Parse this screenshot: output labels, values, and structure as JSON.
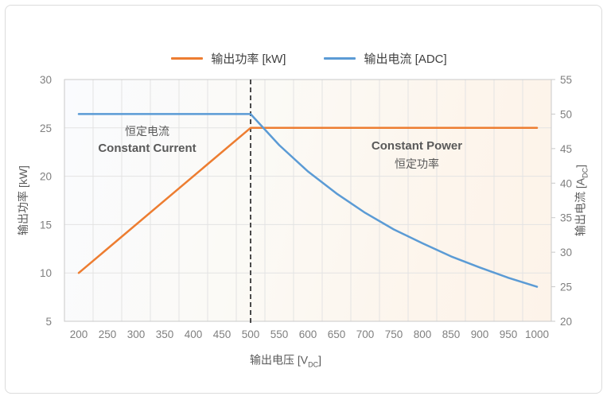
{
  "legend": {
    "items": [
      {
        "label": "输出功率 [kW]",
        "color": "#ED7D31"
      },
      {
        "label": "输出电流 [ADC]",
        "color": "#5B9BD5"
      }
    ]
  },
  "axes": {
    "left_label": "输出功率 [kW]",
    "right_label_prefix": "输出电流 [A",
    "right_label_sub": "DC",
    "right_label_suffix": "]",
    "x_label_prefix": "输出电压 [V",
    "x_label_sub": "DC",
    "x_label_suffix": "]"
  },
  "chart_data": {
    "type": "line",
    "title": "",
    "xlabel": "输出电压 [VDC]",
    "x_ticks": [
      200,
      250,
      300,
      350,
      400,
      450,
      500,
      550,
      600,
      650,
      700,
      750,
      800,
      850,
      900,
      950,
      1000
    ],
    "x_step": 50,
    "xlim": [
      200,
      1000
    ],
    "grid": true,
    "legend_position": "top",
    "left_axis": {
      "label": "输出功率 [kW]",
      "ticks": [
        5,
        10,
        15,
        20,
        25,
        30
      ],
      "range": [
        5,
        30
      ]
    },
    "right_axis": {
      "label": "输出电流 [ADC]",
      "ticks": [
        20,
        25,
        30,
        35,
        40,
        45,
        50,
        55
      ],
      "range": [
        20,
        55
      ]
    },
    "dashed_line_x": 500,
    "series": [
      {
        "name": "输出功率 [kW]",
        "axis": "left",
        "color": "#ED7D31",
        "points": [
          [
            200,
            10
          ],
          [
            500,
            25
          ],
          [
            1000,
            25
          ]
        ]
      },
      {
        "name": "输出电流 [ADC]",
        "axis": "right",
        "color": "#5B9BD5",
        "points": [
          [
            200,
            50
          ],
          [
            500,
            50
          ],
          [
            550,
            45.5
          ],
          [
            600,
            41.7
          ],
          [
            650,
            38.5
          ],
          [
            700,
            35.7
          ],
          [
            750,
            33.3
          ],
          [
            800,
            31.3
          ],
          [
            850,
            29.4
          ],
          [
            900,
            27.8
          ],
          [
            950,
            26.3
          ],
          [
            1000,
            25
          ]
        ]
      }
    ],
    "annotations": [
      {
        "line1": "恒定电流",
        "line2": "Constant Current",
        "region": "constant-current"
      },
      {
        "line1": "Constant Power",
        "line2": "恒定功率",
        "region": "constant-power"
      }
    ]
  }
}
